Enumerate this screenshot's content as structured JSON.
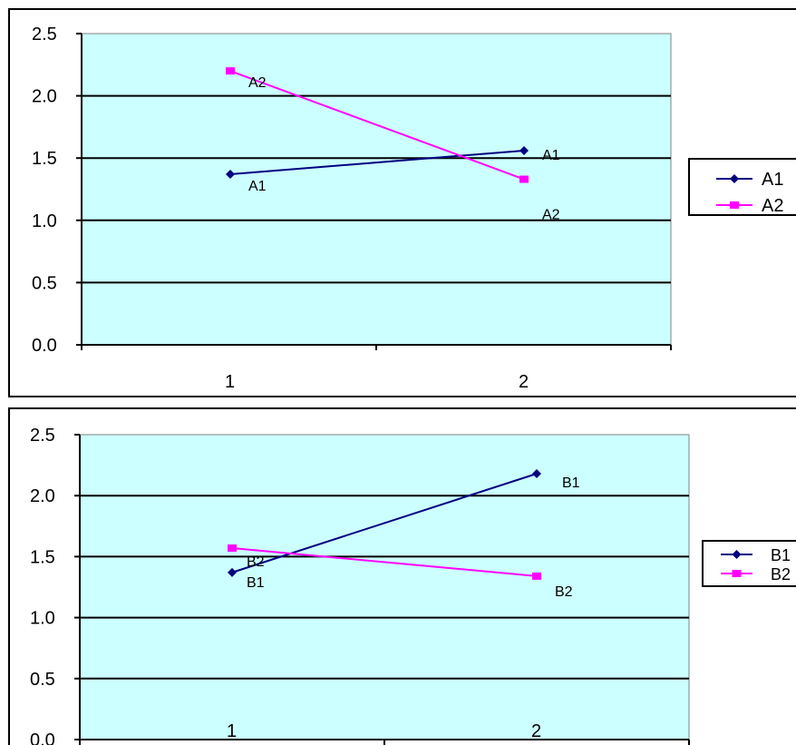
{
  "chart_data": [
    {
      "type": "line",
      "categories": [
        "1",
        "2"
      ],
      "ylim": [
        0,
        2.5
      ],
      "yticks": [
        "0.0",
        "0.5",
        "1.0",
        "1.5",
        "2.0",
        "2.5"
      ],
      "grid": true,
      "legend": "right",
      "series": [
        {
          "name": "A1",
          "values": [
            1.37,
            1.56
          ],
          "color": "#000080",
          "marker": "diamond",
          "point_labels": [
            "A1",
            "A1"
          ]
        },
        {
          "name": "A2",
          "values": [
            2.2,
            1.33
          ],
          "color": "#ff00ff",
          "marker": "square",
          "point_labels": [
            "A2",
            "A2"
          ]
        }
      ]
    },
    {
      "type": "line",
      "categories": [
        "1",
        "2"
      ],
      "ylim": [
        0,
        2.5
      ],
      "yticks": [
        "0.0",
        "0.5",
        "1.0",
        "1.5",
        "2.0",
        "2.5"
      ],
      "grid": true,
      "legend": "right",
      "series": [
        {
          "name": "B1",
          "values": [
            1.37,
            2.18
          ],
          "color": "#000080",
          "marker": "diamond",
          "point_labels": [
            "B1",
            "B1"
          ]
        },
        {
          "name": "B2",
          "values": [
            1.57,
            1.34
          ],
          "color": "#ff00ff",
          "marker": "square",
          "point_labels": [
            "B2",
            "B2"
          ]
        }
      ]
    }
  ],
  "style": {
    "plot_background": "#ccffff",
    "gridline_color": "#000000"
  }
}
